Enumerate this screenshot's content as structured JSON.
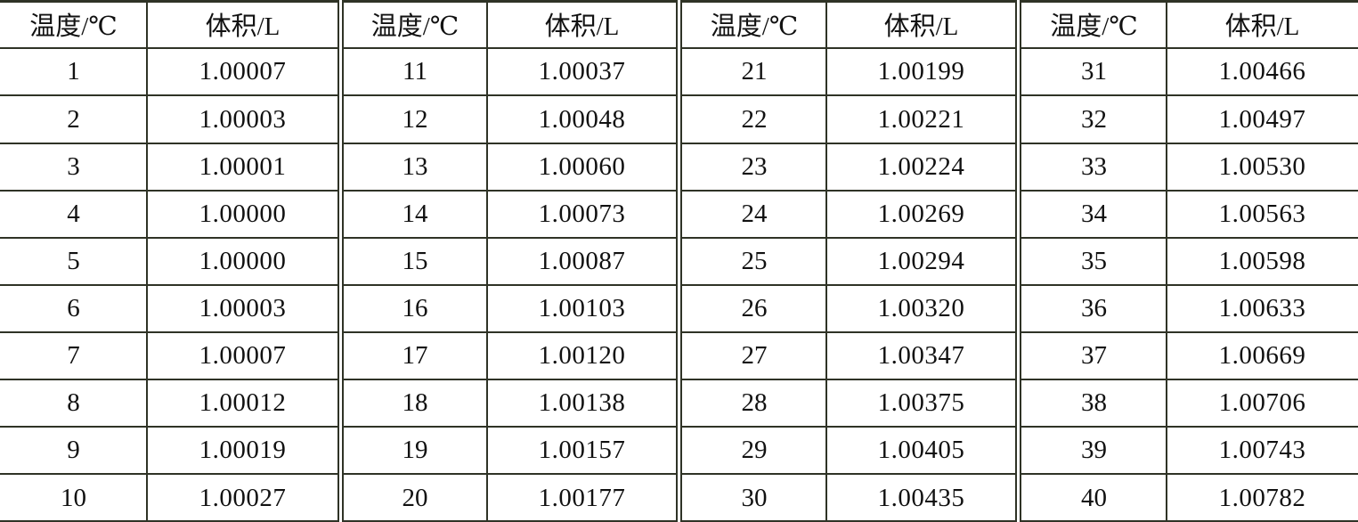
{
  "table": {
    "headers": {
      "temperature": "温度/℃",
      "volume": "体积/L"
    },
    "rows": [
      {
        "t": "1",
        "v": "1.00007"
      },
      {
        "t": "2",
        "v": "1.00003"
      },
      {
        "t": "3",
        "v": "1.00001"
      },
      {
        "t": "4",
        "v": "1.00000"
      },
      {
        "t": "5",
        "v": "1.00000"
      },
      {
        "t": "6",
        "v": "1.00003"
      },
      {
        "t": "7",
        "v": "1.00007"
      },
      {
        "t": "8",
        "v": "1.00012"
      },
      {
        "t": "9",
        "v": "1.00019"
      },
      {
        "t": "10",
        "v": "1.00027"
      },
      {
        "t": "11",
        "v": "1.00037"
      },
      {
        "t": "12",
        "v": "1.00048"
      },
      {
        "t": "13",
        "v": "1.00060"
      },
      {
        "t": "14",
        "v": "1.00073"
      },
      {
        "t": "15",
        "v": "1.00087"
      },
      {
        "t": "16",
        "v": "1.00103"
      },
      {
        "t": "17",
        "v": "1.00120"
      },
      {
        "t": "18",
        "v": "1.00138"
      },
      {
        "t": "19",
        "v": "1.00157"
      },
      {
        "t": "20",
        "v": "1.00177"
      },
      {
        "t": "21",
        "v": "1.00199"
      },
      {
        "t": "22",
        "v": "1.00221"
      },
      {
        "t": "23",
        "v": "1.00224"
      },
      {
        "t": "24",
        "v": "1.00269"
      },
      {
        "t": "25",
        "v": "1.00294"
      },
      {
        "t": "26",
        "v": "1.00320"
      },
      {
        "t": "27",
        "v": "1.00347"
      },
      {
        "t": "28",
        "v": "1.00375"
      },
      {
        "t": "29",
        "v": "1.00405"
      },
      {
        "t": "30",
        "v": "1.00435"
      },
      {
        "t": "31",
        "v": "1.00466"
      },
      {
        "t": "32",
        "v": "1.00497"
      },
      {
        "t": "33",
        "v": "1.00530"
      },
      {
        "t": "34",
        "v": "1.00563"
      },
      {
        "t": "35",
        "v": "1.00598"
      },
      {
        "t": "36",
        "v": "1.00633"
      },
      {
        "t": "37",
        "v": "1.00669"
      },
      {
        "t": "38",
        "v": "1.00706"
      },
      {
        "t": "39",
        "v": "1.00743"
      },
      {
        "t": "40",
        "v": "1.00782"
      }
    ],
    "line_color": "#2f3326"
  }
}
